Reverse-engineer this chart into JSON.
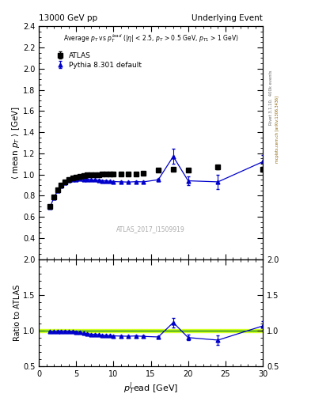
{
  "title_left": "13000 GeV pp",
  "title_right": "Underlying Event",
  "xlabel": "$p_{T}^{l}$ead [GeV]",
  "ylabel_main": "$\\langle$ mean $p_T$ $\\rangle$ [GeV]",
  "ylabel_ratio": "Ratio to ATLAS",
  "annotation": "ATLAS_2017_I1509919",
  "annotation2": "Average $p_T$ vs $p_T^{lead}$ ($|\\eta|$ < 2.5, $p_T$ > 0.5 GeV, $p_{T1}$ > 1 GeV)",
  "right_label": "mcplots.cern.ch [arXiv:1306.3436]",
  "rivet_label": "Rivet 3.1.10,  400k events",
  "xlim": [
    0,
    30
  ],
  "ylim_main": [
    0.2,
    2.4
  ],
  "ylim_ratio": [
    0.5,
    2.0
  ],
  "atlas_x": [
    1.5,
    2.0,
    2.5,
    3.0,
    3.5,
    4.0,
    4.5,
    5.0,
    5.5,
    6.0,
    6.5,
    7.0,
    7.5,
    8.0,
    8.5,
    9.0,
    9.5,
    10.0,
    11.0,
    12.0,
    13.0,
    14.0,
    16.0,
    18.0,
    20.0,
    24.0,
    30.0
  ],
  "atlas_y": [
    0.7,
    0.79,
    0.855,
    0.9,
    0.93,
    0.955,
    0.965,
    0.975,
    0.985,
    0.99,
    0.995,
    1.0,
    1.0,
    1.0,
    1.005,
    1.005,
    1.005,
    1.005,
    1.005,
    1.005,
    1.005,
    1.01,
    1.04,
    1.05,
    1.04,
    1.07,
    1.05
  ],
  "atlas_yerr": [
    0.008,
    0.008,
    0.007,
    0.007,
    0.006,
    0.006,
    0.005,
    0.005,
    0.005,
    0.005,
    0.005,
    0.005,
    0.005,
    0.005,
    0.005,
    0.005,
    0.005,
    0.005,
    0.005,
    0.006,
    0.006,
    0.007,
    0.01,
    0.012,
    0.015,
    0.018,
    0.02
  ],
  "pythia_x": [
    1.5,
    2.0,
    2.5,
    3.0,
    3.5,
    4.0,
    4.5,
    5.0,
    5.5,
    6.0,
    6.5,
    7.0,
    7.5,
    8.0,
    8.5,
    9.0,
    9.5,
    10.0,
    11.0,
    12.0,
    13.0,
    14.0,
    16.0,
    18.0,
    20.0,
    24.0,
    30.0
  ],
  "pythia_y": [
    0.69,
    0.78,
    0.845,
    0.895,
    0.925,
    0.945,
    0.955,
    0.955,
    0.96,
    0.955,
    0.955,
    0.95,
    0.948,
    0.945,
    0.94,
    0.94,
    0.935,
    0.933,
    0.93,
    0.928,
    0.932,
    0.93,
    0.95,
    1.17,
    0.94,
    0.93,
    1.12
  ],
  "pythia_yerr": [
    0.005,
    0.005,
    0.005,
    0.005,
    0.004,
    0.004,
    0.004,
    0.004,
    0.004,
    0.004,
    0.004,
    0.004,
    0.004,
    0.004,
    0.004,
    0.004,
    0.004,
    0.004,
    0.004,
    0.005,
    0.005,
    0.006,
    0.01,
    0.07,
    0.04,
    0.07,
    0.065
  ],
  "ratio_x": [
    1.5,
    2.0,
    2.5,
    3.0,
    3.5,
    4.0,
    4.5,
    5.0,
    5.5,
    6.0,
    6.5,
    7.0,
    7.5,
    8.0,
    8.5,
    9.0,
    9.5,
    10.0,
    11.0,
    12.0,
    13.0,
    14.0,
    16.0,
    18.0,
    20.0,
    24.0,
    30.0
  ],
  "ratio_y": [
    0.986,
    0.987,
    0.99,
    0.994,
    0.995,
    0.99,
    0.988,
    0.98,
    0.975,
    0.965,
    0.96,
    0.95,
    0.948,
    0.945,
    0.935,
    0.935,
    0.93,
    0.928,
    0.925,
    0.923,
    0.927,
    0.921,
    0.913,
    1.114,
    0.904,
    0.869,
    1.067
  ],
  "ratio_yerr": [
    0.006,
    0.006,
    0.006,
    0.006,
    0.005,
    0.005,
    0.005,
    0.005,
    0.005,
    0.005,
    0.005,
    0.005,
    0.005,
    0.005,
    0.005,
    0.005,
    0.005,
    0.005,
    0.005,
    0.006,
    0.006,
    0.01,
    0.015,
    0.065,
    0.038,
    0.068,
    0.062
  ],
  "atlas_color": "#000000",
  "pythia_color": "#0000cc",
  "band_color": "#ccff00",
  "band_alpha": 0.75,
  "band_ylo": 0.975,
  "band_yhi": 1.025
}
